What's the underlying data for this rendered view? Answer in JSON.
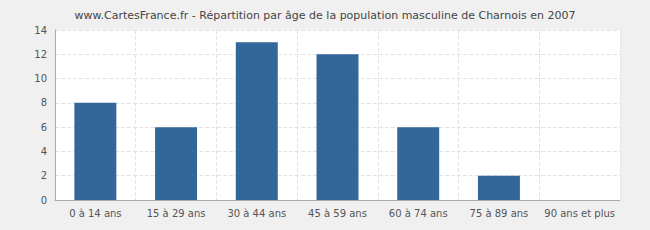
{
  "chart_data": {
    "type": "bar",
    "title": "www.CartesFrance.fr - Répartition par âge de la population masculine de Charnois en 2007",
    "categories": [
      "0 à 14 ans",
      "15 à 29 ans",
      "30 à 44 ans",
      "45 à 59 ans",
      "60 à 74 ans",
      "75 à 89 ans",
      "90 ans et plus"
    ],
    "values": [
      8,
      6,
      13,
      12,
      6,
      2,
      0
    ],
    "color": "#336699",
    "ylim": [
      0,
      14
    ],
    "yticks": [
      0,
      2,
      4,
      6,
      8,
      10,
      12,
      14
    ],
    "grid": true
  }
}
